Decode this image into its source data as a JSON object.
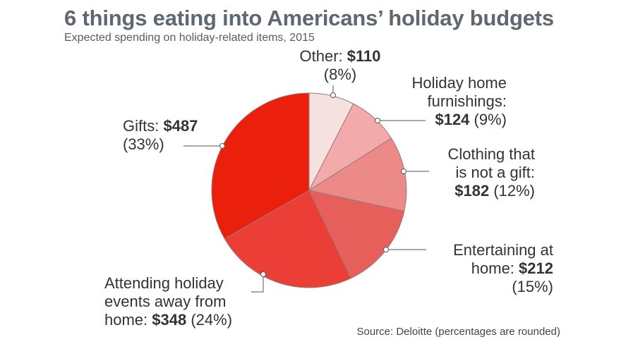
{
  "title": "6 things eating into Americans’ holiday budgets",
  "subtitle": "Expected spending on holiday-related items, 2015",
  "source": "Source: Deloitte (percentages are rounded)",
  "colors": {
    "slices": [
      "#f6e1e1",
      "#f2aaaa",
      "#ec8a88",
      "#e75f5b",
      "#ea3e36",
      "#ea1f0c"
    ],
    "title": "#5f6770"
  },
  "chart_data": {
    "type": "pie",
    "start": "12 o'clock, clockwise",
    "slices": [
      {
        "label_pre": "Other:",
        "value": 110,
        "value_text": "$110",
        "pct_text": "(8%)"
      },
      {
        "label_pre": "Holiday home furnishings:",
        "value": 124,
        "value_text": "$124",
        "pct_text": "(9%)"
      },
      {
        "label_pre": "Clothing that is not a gift:",
        "value": 182,
        "value_text": "$182",
        "pct_text": "(12%)"
      },
      {
        "label_pre": "Entertaining at home:",
        "value": 212,
        "value_text": "$212",
        "pct_text": "(15%)"
      },
      {
        "label_pre": "Attending holiday events away from home:",
        "value": 348,
        "value_text": "$348",
        "pct_text": "(24%)"
      },
      {
        "label_pre": "Gifts:",
        "value": 487,
        "value_text": "$487",
        "pct_text": "(33%)"
      }
    ]
  }
}
